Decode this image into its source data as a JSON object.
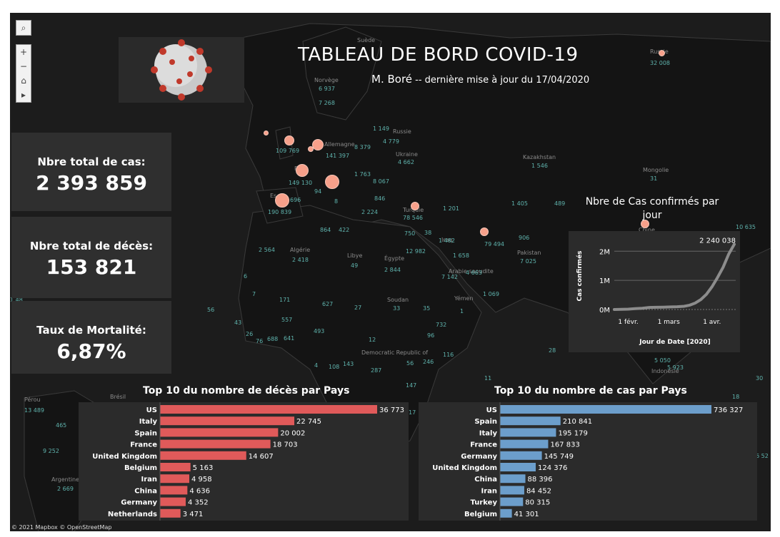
{
  "header": {
    "title": "TABLEAU DE BORD COVID-19",
    "author": "M. Boré",
    "update": "-- dernière mise à jour du 17/04/2020"
  },
  "kpis": [
    {
      "label": "Nbre total de cas:",
      "value": "2 393 859"
    },
    {
      "label": "Nbre total de décès:",
      "value": "153 821"
    },
    {
      "label": "Taux de Mortalité:",
      "value": "6,87%"
    }
  ],
  "map": {
    "credit": "© 2021 Mapbox © OpenStreetMap",
    "controls": {
      "search": "⌕",
      "zoom_in": "+",
      "zoom_out": "−",
      "home": "⌂",
      "play": "▸"
    },
    "labels": [
      {
        "text": "Suède"
      },
      {
        "text": "Russie"
      },
      {
        "text": "Norvège"
      },
      {
        "text": "Allemagne"
      },
      {
        "text": "Russie"
      },
      {
        "text": "Ukraine"
      },
      {
        "text": "Kazakhstan"
      },
      {
        "text": "Mongolie"
      },
      {
        "text": "Algérie"
      },
      {
        "text": "Libye"
      },
      {
        "text": "Égypte"
      },
      {
        "text": "Soudan"
      },
      {
        "text": "Yémen"
      },
      {
        "text": "Arabie saoudite"
      },
      {
        "text": "Pakistan"
      },
      {
        "text": "Turquie"
      },
      {
        "text": "Iraq"
      },
      {
        "text": "Chine"
      },
      {
        "text": "Indonésie"
      },
      {
        "text": "Pérou"
      },
      {
        "text": "Brésil"
      },
      {
        "text": "Argentine"
      },
      {
        "text": "Democratic Republic of"
      },
      {
        "text": "Fr"
      },
      {
        "text": "Es"
      }
    ],
    "numbers": [
      {
        "text": "32 008"
      },
      {
        "text": "6 937"
      },
      {
        "text": "7 268"
      },
      {
        "text": "1 149"
      },
      {
        "text": "4 779"
      },
      {
        "text": "109 769"
      },
      {
        "text": "141 397"
      },
      {
        "text": "8 379"
      },
      {
        "text": "4 662"
      },
      {
        "text": "1 546"
      },
      {
        "text": "31"
      },
      {
        "text": "1 763"
      },
      {
        "text": "8 067"
      },
      {
        "text": "149 130"
      },
      {
        "text": "94"
      },
      {
        "text": "846"
      },
      {
        "text": "8"
      },
      {
        "text": "190 839"
      },
      {
        "text": "2 224"
      },
      {
        "text": "696"
      },
      {
        "text": "78 546"
      },
      {
        "text": "1 201"
      },
      {
        "text": "1 405"
      },
      {
        "text": "489"
      },
      {
        "text": "10 635"
      },
      {
        "text": "864"
      },
      {
        "text": "422"
      },
      {
        "text": "750"
      },
      {
        "text": "38"
      },
      {
        "text": "1 482"
      },
      {
        "text": "79 494"
      },
      {
        "text": "906"
      },
      {
        "text": "2 564"
      },
      {
        "text": "2 418"
      },
      {
        "text": "49"
      },
      {
        "text": "2 844"
      },
      {
        "text": "12 982"
      },
      {
        "text": "1 658"
      },
      {
        "text": "7 142"
      },
      {
        "text": "4 663"
      },
      {
        "text": "7 025"
      },
      {
        "text": "6"
      },
      {
        "text": "7"
      },
      {
        "text": "171"
      },
      {
        "text": "627"
      },
      {
        "text": "27"
      },
      {
        "text": "33"
      },
      {
        "text": "35"
      },
      {
        "text": "1"
      },
      {
        "text": "1 069"
      },
      {
        "text": "56"
      },
      {
        "text": "43"
      },
      {
        "text": "557"
      },
      {
        "text": "26"
      },
      {
        "text": "76"
      },
      {
        "text": "688"
      },
      {
        "text": "641"
      },
      {
        "text": "493"
      },
      {
        "text": "12"
      },
      {
        "text": "732"
      },
      {
        "text": "96"
      },
      {
        "text": "4"
      },
      {
        "text": "108"
      },
      {
        "text": "143"
      },
      {
        "text": "287"
      },
      {
        "text": "56"
      },
      {
        "text": "246"
      },
      {
        "text": "116"
      },
      {
        "text": "28"
      },
      {
        "text": "5 050"
      },
      {
        "text": "5 923"
      },
      {
        "text": "147"
      },
      {
        "text": "11"
      },
      {
        "text": "17"
      },
      {
        "text": "18"
      },
      {
        "text": "13 489"
      },
      {
        "text": "465"
      },
      {
        "text": "9 252"
      },
      {
        "text": "2 669"
      },
      {
        "text": "6 52"
      },
      {
        "text": "30"
      },
      {
        "text": "1 48"
      }
    ]
  },
  "colors": {
    "deaths_bar": "#e05a5a",
    "cases_bar": "#6c9ecb",
    "line": "#8c8c8c",
    "bubble": "#f7a08a"
  },
  "chart_data": [
    {
      "type": "bar",
      "title": "Top 10 du nombre de décès par Pays",
      "orientation": "horizontal",
      "categories": [
        "US",
        "Italy",
        "Spain",
        "France",
        "United Kingdom",
        "Belgium",
        "Iran",
        "China",
        "Germany",
        "Netherlands"
      ],
      "values": [
        36773,
        22745,
        20002,
        18703,
        14607,
        5163,
        4958,
        4636,
        4352,
        3471
      ],
      "labels": [
        "36 773",
        "22 745",
        "20 002",
        "18 703",
        "14 607",
        "5 163",
        "4 958",
        "4 636",
        "4 352",
        "3 471"
      ]
    },
    {
      "type": "bar",
      "title": "Top 10 du nombre de cas par Pays",
      "orientation": "horizontal",
      "categories": [
        "US",
        "Spain",
        "Italy",
        "France",
        "Germany",
        "United Kingdom",
        "China",
        "Iran",
        "Turkey",
        "Belgium"
      ],
      "values": [
        736327,
        210841,
        195179,
        167833,
        145749,
        124376,
        88396,
        84452,
        80315,
        41301
      ],
      "labels": [
        "736 327",
        "210 841",
        "195 179",
        "167 833",
        "145 749",
        "124 376",
        "88 396",
        "84 452",
        "80 315",
        "41 301"
      ]
    },
    {
      "type": "line",
      "title": "Nbre de Cas confirmés par jour",
      "xlabel": "Jour de Date [2020]",
      "ylabel": "Cas confirmés",
      "x_tick_labels": [
        "1 févr.",
        "1 mars",
        "1 avr."
      ],
      "x_tick_days": [
        10,
        39,
        70
      ],
      "y_tick_labels": [
        "2M",
        "1M",
        "0M"
      ],
      "y_tick_values": [
        2000000,
        1000000,
        0
      ],
      "ylim": [
        0,
        2300000
      ],
      "xlim": [
        0,
        87
      ],
      "end_label": "2 240 038",
      "x": [
        0,
        5,
        10,
        15,
        20,
        25,
        30,
        35,
        40,
        45,
        50,
        54,
        58,
        62,
        66,
        70,
        74,
        78,
        82,
        86
      ],
      "y": [
        555,
        6166,
        11950,
        28276,
        43100,
        71200,
        75641,
        80132,
        88371,
        95124,
        110000,
        150000,
        220000,
        340000,
        520000,
        780000,
        1100000,
        1450000,
        1900000,
        2240038
      ]
    }
  ]
}
